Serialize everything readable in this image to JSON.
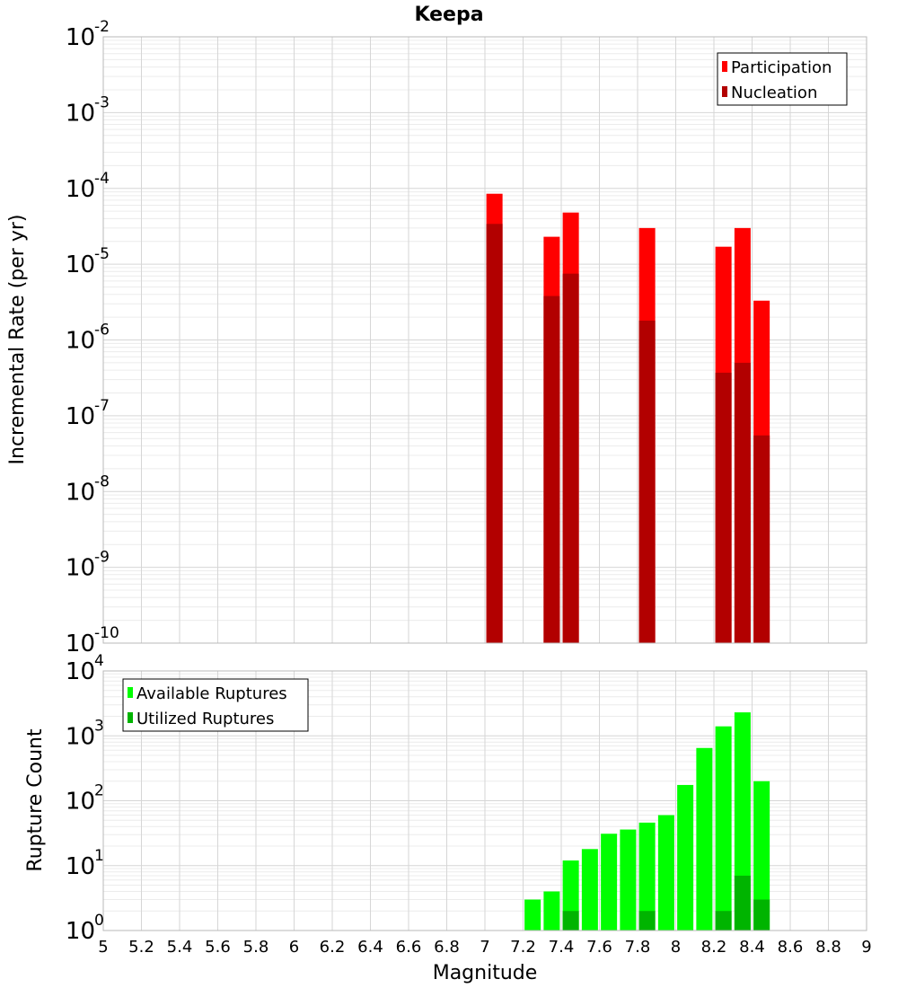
{
  "chart_data": {
    "title": "Keepa",
    "xlabel": "Magnitude",
    "x_ticks": [
      "5",
      "5.2",
      "5.4",
      "5.6",
      "5.8",
      "6",
      "6.2",
      "6.4",
      "6.6",
      "6.8",
      "7",
      "7.2",
      "7.4",
      "7.6",
      "7.8",
      "8",
      "8.2",
      "8.4",
      "8.6",
      "8.8",
      "9"
    ],
    "xlim": [
      5,
      9
    ],
    "bin_width": 0.1,
    "grid": true,
    "panels": [
      {
        "type": "bar",
        "ylabel": "Incremental Rate (per yr)",
        "yscale": "log",
        "ylim_exp": [
          -10,
          -2
        ],
        "y_tick_exponents": [
          "-10",
          "-9",
          "-8",
          "-7",
          "-6",
          "-5",
          "-4",
          "-3",
          "-2"
        ],
        "legend_position": "top-right",
        "series": [
          {
            "name": "Participation",
            "color": "#ff0000",
            "points": [
              {
                "x": 7.05,
                "y": 8.5e-05
              },
              {
                "x": 7.35,
                "y": 2.3e-05
              },
              {
                "x": 7.45,
                "y": 4.8e-05
              },
              {
                "x": 7.85,
                "y": 3e-05
              },
              {
                "x": 8.25,
                "y": 1.7e-05
              },
              {
                "x": 8.35,
                "y": 3e-05
              },
              {
                "x": 8.45,
                "y": 3.3e-06
              }
            ]
          },
          {
            "name": "Nucleation",
            "color": "#b20000",
            "points": [
              {
                "x": 7.05,
                "y": 3.4e-05
              },
              {
                "x": 7.35,
                "y": 3.8e-06
              },
              {
                "x": 7.45,
                "y": 7.5e-06
              },
              {
                "x": 7.85,
                "y": 1.8e-06
              },
              {
                "x": 8.25,
                "y": 3.7e-07
              },
              {
                "x": 8.35,
                "y": 5e-07
              },
              {
                "x": 8.45,
                "y": 5.5e-08
              }
            ]
          }
        ]
      },
      {
        "type": "bar",
        "ylabel": "Rupture Count",
        "yscale": "log",
        "ylim_exp": [
          0,
          4
        ],
        "y_tick_exponents": [
          "0",
          "1",
          "2",
          "3",
          "4"
        ],
        "legend_position": "top-left",
        "series": [
          {
            "name": "Available Ruptures",
            "color": "#00ff00",
            "points": [
              {
                "x": 6.65,
                "y": 1
              },
              {
                "x": 7.05,
                "y": 1
              },
              {
                "x": 7.25,
                "y": 3
              },
              {
                "x": 7.35,
                "y": 4
              },
              {
                "x": 7.45,
                "y": 12
              },
              {
                "x": 7.55,
                "y": 18
              },
              {
                "x": 7.65,
                "y": 31
              },
              {
                "x": 7.75,
                "y": 36
              },
              {
                "x": 7.85,
                "y": 46
              },
              {
                "x": 7.95,
                "y": 60
              },
              {
                "x": 8.05,
                "y": 175
              },
              {
                "x": 8.15,
                "y": 650
              },
              {
                "x": 8.25,
                "y": 1400
              },
              {
                "x": 8.35,
                "y": 2300
              },
              {
                "x": 8.45,
                "y": 200
              }
            ]
          },
          {
            "name": "Utilized Ruptures",
            "color": "#00b400",
            "points": [
              {
                "x": 7.05,
                "y": 1
              },
              {
                "x": 7.35,
                "y": 1
              },
              {
                "x": 7.45,
                "y": 2
              },
              {
                "x": 7.85,
                "y": 2
              },
              {
                "x": 8.25,
                "y": 2
              },
              {
                "x": 8.35,
                "y": 7
              },
              {
                "x": 8.45,
                "y": 3
              }
            ]
          }
        ]
      }
    ]
  }
}
